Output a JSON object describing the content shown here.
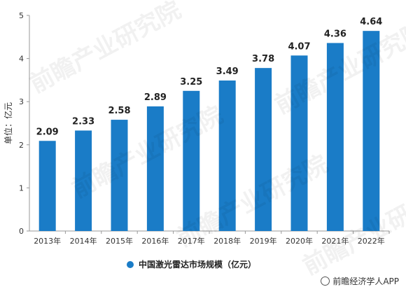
{
  "chart_data": {
    "type": "bar",
    "categories": [
      "2013年",
      "2014年",
      "2015年",
      "2016年",
      "2017年",
      "2018年",
      "2019年",
      "2020年",
      "2021年",
      "2022年"
    ],
    "series": [
      {
        "name": "中国激光雷达市场规模（亿元）",
        "values": [
          2.09,
          2.33,
          2.58,
          2.89,
          3.25,
          3.49,
          3.78,
          4.07,
          4.36,
          4.64
        ],
        "color": "#1a7cc7"
      }
    ],
    "data_labels": [
      "2.09",
      "2.33",
      "2.58",
      "2.89",
      "3.25",
      "3.49",
      "3.78",
      "4.07",
      "4.36",
      "4.64"
    ],
    "ylabel": "单位：亿元",
    "ylim": [
      0,
      5
    ],
    "yticks": [
      "0",
      "1",
      "2",
      "3",
      "4",
      "5"
    ],
    "grid": false,
    "legend_position": "bottom"
  },
  "watermark_text": "前瞻产业研究院",
  "footer": {
    "text": "前瞻经济学人APP"
  }
}
